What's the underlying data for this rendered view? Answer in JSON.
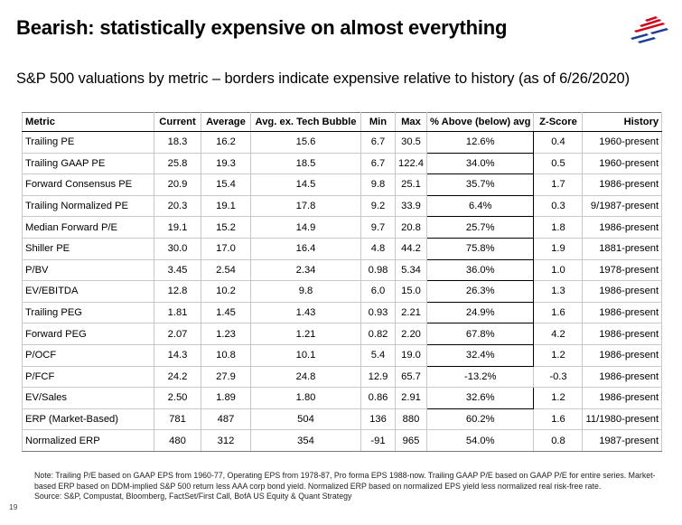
{
  "title": "Bearish: statistically expensive on almost everything",
  "subtitle": "S&P 500 valuations by metric – borders indicate expensive relative to history (as of 6/26/2020)",
  "logo_icon": "bank-flag-logo-icon",
  "colors": {
    "logo_red": "#d4001a",
    "logo_blue": "#1c3f94"
  },
  "table": {
    "headers": [
      "Metric",
      "Current",
      "Average",
      "Avg. ex. Tech Bubble",
      "Min",
      "Max",
      "% Above (below) avg",
      "Z-Score",
      "History"
    ],
    "rows": [
      {
        "metric": "Trailing PE",
        "current": "18.3",
        "average": "16.2",
        "avg_ex_tech": "15.6",
        "min": "6.7",
        "max": "30.5",
        "pct_above": "12.6%",
        "z": "0.4",
        "history": "1960-present",
        "boxed": true
      },
      {
        "metric": "Trailing GAAP PE",
        "current": "25.8",
        "average": "19.3",
        "avg_ex_tech": "18.5",
        "min": "6.7",
        "max": "122.4",
        "pct_above": "34.0%",
        "z": "0.5",
        "history": "1960-present",
        "boxed": true
      },
      {
        "metric": "Forward Consensus PE",
        "current": "20.9",
        "average": "15.4",
        "avg_ex_tech": "14.5",
        "min": "9.8",
        "max": "25.1",
        "pct_above": "35.7%",
        "z": "1.7",
        "history": "1986-present",
        "boxed": true
      },
      {
        "metric": "Trailing Normalized PE",
        "current": "20.3",
        "average": "19.1",
        "avg_ex_tech": "17.8",
        "min": "9.2",
        "max": "33.9",
        "pct_above": "6.4%",
        "z": "0.3",
        "history": "9/1987-present",
        "boxed": true
      },
      {
        "metric": "Median Forward P/E",
        "current": "19.1",
        "average": "15.2",
        "avg_ex_tech": "14.9",
        "min": "9.7",
        "max": "20.8",
        "pct_above": "25.7%",
        "z": "1.8",
        "history": "1986-present",
        "boxed": true
      },
      {
        "metric": "Shiller PE",
        "current": "30.0",
        "average": "17.0",
        "avg_ex_tech": "16.4",
        "min": "4.8",
        "max": "44.2",
        "pct_above": "75.8%",
        "z": "1.9",
        "history": "1881-present",
        "boxed": true
      },
      {
        "metric": "P/BV",
        "current": "3.45",
        "average": "2.54",
        "avg_ex_tech": "2.34",
        "min": "0.98",
        "max": "5.34",
        "pct_above": "36.0%",
        "z": "1.0",
        "history": "1978-present",
        "boxed": true
      },
      {
        "metric": "EV/EBITDA",
        "current": "12.8",
        "average": "10.2",
        "avg_ex_tech": "9.8",
        "min": "6.0",
        "max": "15.0",
        "pct_above": "26.3%",
        "z": "1.3",
        "history": "1986-present",
        "boxed": true
      },
      {
        "metric": "Trailing PEG",
        "current": "1.81",
        "average": "1.45",
        "avg_ex_tech": "1.43",
        "min": "0.93",
        "max": "2.21",
        "pct_above": "24.9%",
        "z": "1.6",
        "history": "1986-present",
        "boxed": true
      },
      {
        "metric": "Forward PEG",
        "current": "2.07",
        "average": "1.23",
        "avg_ex_tech": "1.21",
        "min": "0.82",
        "max": "2.20",
        "pct_above": "67.8%",
        "z": "4.2",
        "history": "1986-present",
        "boxed": true
      },
      {
        "metric": "P/OCF",
        "current": "14.3",
        "average": "10.8",
        "avg_ex_tech": "10.1",
        "min": "5.4",
        "max": "19.0",
        "pct_above": "32.4%",
        "z": "1.2",
        "history": "1986-present",
        "boxed": true
      },
      {
        "metric": "P/FCF",
        "current": "24.2",
        "average": "27.9",
        "avg_ex_tech": "24.8",
        "min": "12.9",
        "max": "65.7",
        "pct_above": "-13.2%",
        "z": "-0.3",
        "history": "1986-present",
        "boxed": false
      },
      {
        "metric": "EV/Sales",
        "current": "2.50",
        "average": "1.89",
        "avg_ex_tech": "1.80",
        "min": "0.86",
        "max": "2.91",
        "pct_above": "32.6%",
        "z": "1.2",
        "history": "1986-present",
        "boxed": true
      },
      {
        "metric": "ERP (Market-Based)",
        "current": "781",
        "average": "487",
        "avg_ex_tech": "504",
        "min": "136",
        "max": "880",
        "pct_above": "60.2%",
        "z": "1.6",
        "history": "11/1980-present",
        "boxed": false
      },
      {
        "metric": "Normalized ERP",
        "current": "480",
        "average": "312",
        "avg_ex_tech": "354",
        "min": "-91",
        "max": "965",
        "pct_above": "54.0%",
        "z": "0.8",
        "history": "1987-present",
        "boxed": false
      }
    ]
  },
  "note": "Note: Trailing P/E based on GAAP EPS from 1960-77, Operating EPS from 1978-87, Pro forma EPS 1988-now. Trailing GAAP P/E based on GAAP P/E for entire series. Market-based ERP based on DDM-implied S&P 500 return less AAA corp bond yield. Normalized ERP based on normalized EPS yield less normalized real risk-free rate.",
  "source": "Source: S&P, Compustat, Bloomberg, FactSet/First Call, BofA US Equity & Quant Strategy",
  "page_number": "19"
}
